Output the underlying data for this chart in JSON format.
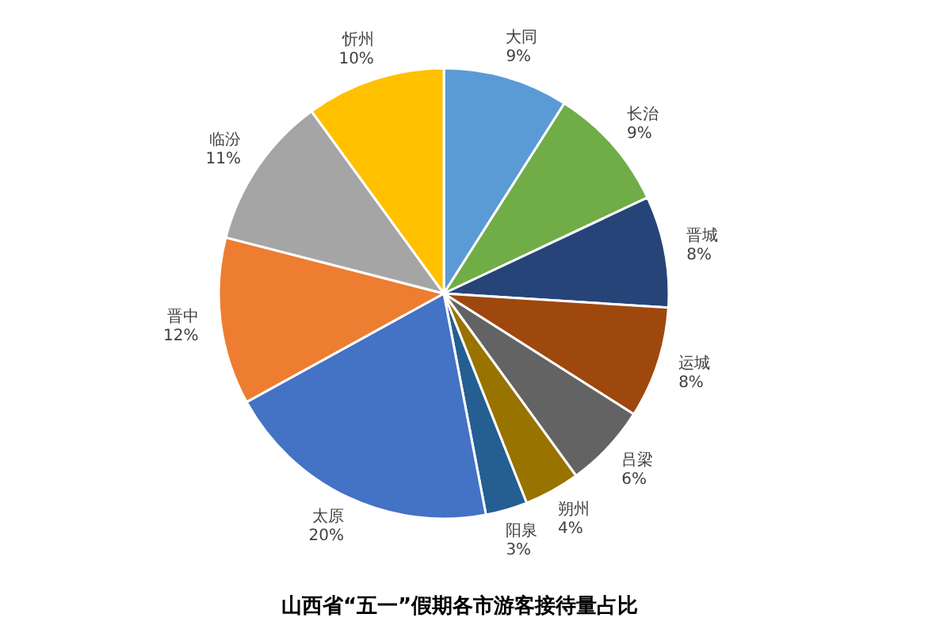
{
  "chart_data": {
    "type": "pie",
    "title": "山西省“五一”假期各市游客接待量占比",
    "categories": [
      "大同",
      "长治",
      "晋城",
      "运城",
      "吕梁",
      "朔州",
      "阳泉",
      "太原",
      "晋中",
      "临汾",
      "忻州"
    ],
    "values": [
      9,
      9,
      8,
      8,
      6,
      4,
      3,
      20,
      12,
      11,
      10
    ],
    "colors": [
      "#5b9bd5",
      "#70ad47",
      "#264478",
      "#9e480e",
      "#636363",
      "#997300",
      "#255e91",
      "#4472c4",
      "#ed7d31",
      "#a5a5a5",
      "#ffc000"
    ],
    "value_labels": [
      "9%",
      "9%",
      "8%",
      "8%",
      "6%",
      "4%",
      "3%",
      "20%",
      "12%",
      "11%",
      "10%"
    ]
  }
}
